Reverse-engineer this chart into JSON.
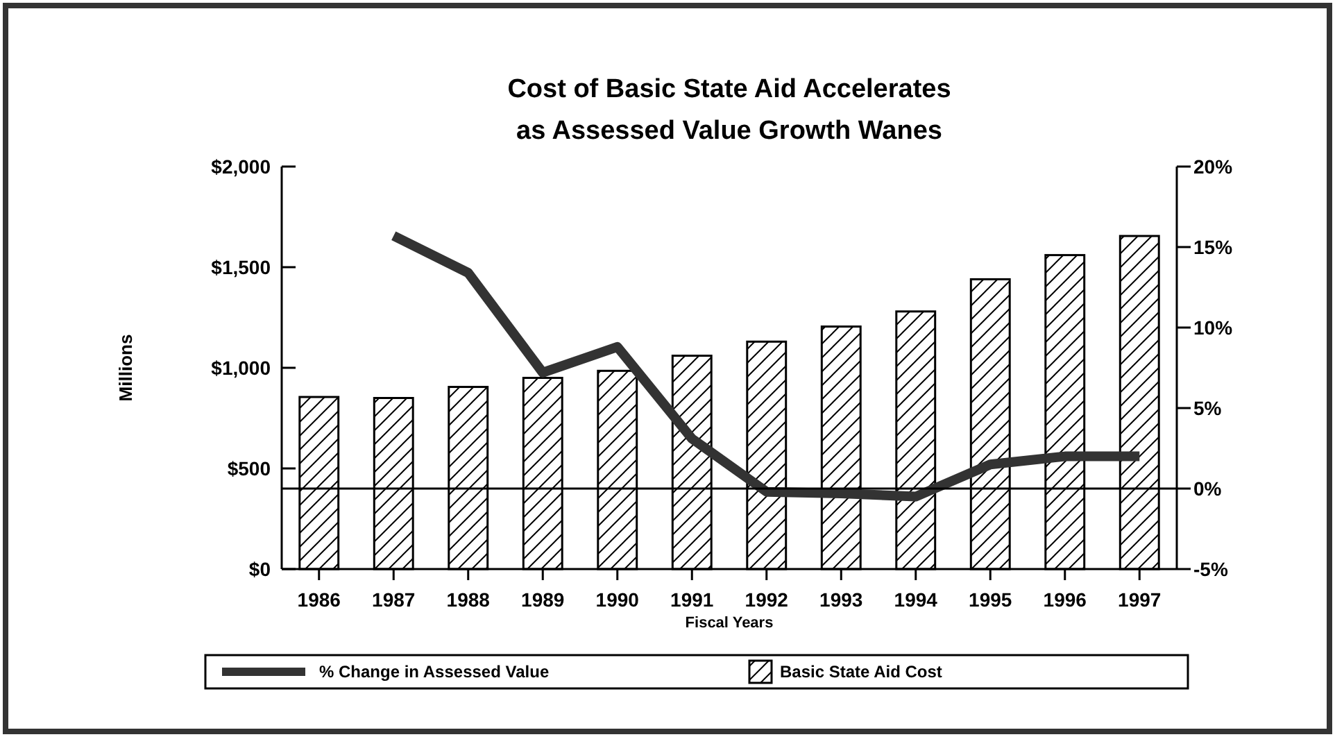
{
  "chart_data": {
    "type": "bar",
    "title": "Cost of Basic State Aid Accelerates\nas Assessed Value Growth Wanes",
    "xlabel": "Fiscal Years",
    "ylabel": "Millions",
    "categories": [
      "1986",
      "1987",
      "1988",
      "1989",
      "1990",
      "1991",
      "1992",
      "1993",
      "1994",
      "1995",
      "1996",
      "1997"
    ],
    "series": [
      {
        "name": "% Change in Assessed Value",
        "type": "line",
        "axis": "y2",
        "color": "#333333",
        "values": [
          null,
          15.7,
          13.4,
          7.2,
          8.8,
          3.1,
          -0.2,
          -0.3,
          -0.5,
          1.5,
          2.0,
          2.0
        ]
      },
      {
        "name": "Basic State Aid Cost",
        "color": "#000000",
        "values": [
          855,
          850,
          905,
          950,
          985,
          1060,
          1130,
          1205,
          1280,
          1440,
          1560,
          1655
        ]
      }
    ],
    "ylim": [
      0,
      2000
    ],
    "yticks": [
      {
        "value": 0,
        "label": "$0"
      },
      {
        "value": 500,
        "label": "$500"
      },
      {
        "value": 1000,
        "label": "$1,000"
      },
      {
        "value": 1500,
        "label": "$1,500"
      },
      {
        "value": 2000,
        "label": "$2,000"
      }
    ],
    "y2lim": [
      -5,
      20
    ],
    "y2ticks": [
      {
        "value": -5,
        "label": "-5%"
      },
      {
        "value": 0,
        "label": "0%"
      },
      {
        "value": 5,
        "label": "5%"
      },
      {
        "value": 10,
        "label": "10%"
      },
      {
        "value": 15,
        "label": "15%"
      },
      {
        "value": 20,
        "label": "20%"
      }
    ],
    "ref_lines": [
      {
        "axis": "y2",
        "value": 0,
        "color": "#000000"
      }
    ],
    "grid": false,
    "legend": "bottom"
  }
}
